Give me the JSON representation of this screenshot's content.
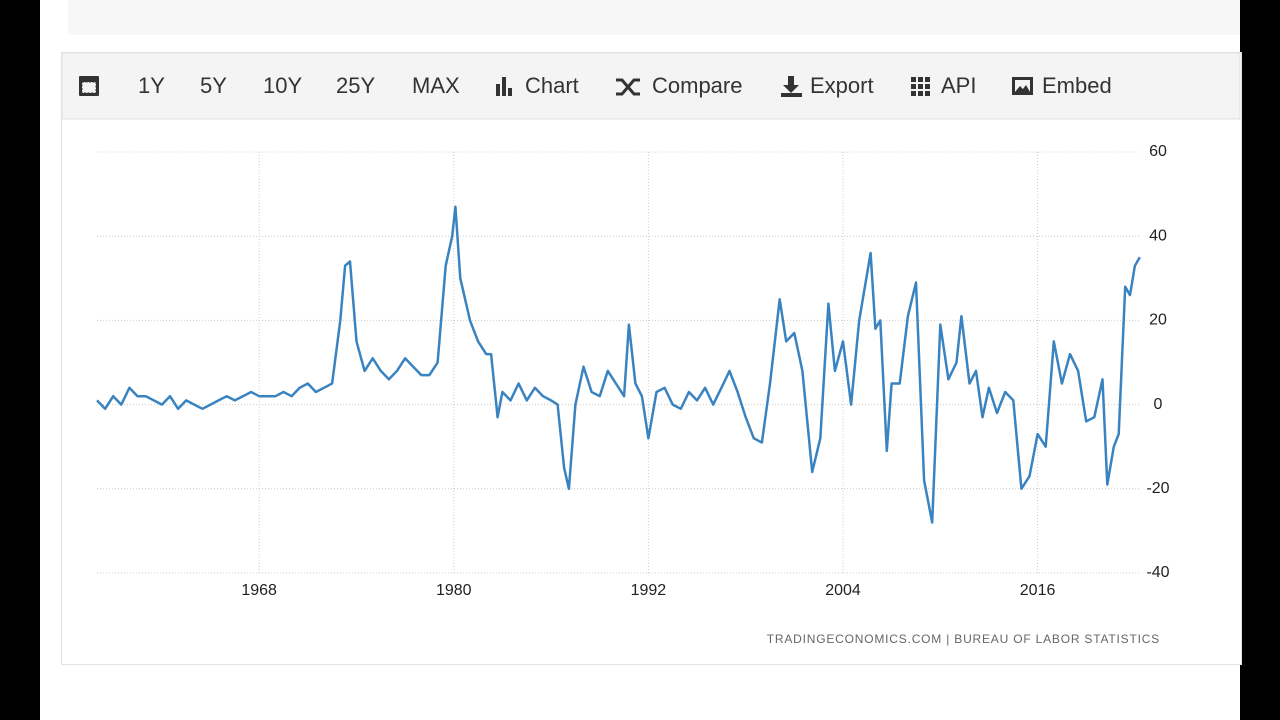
{
  "toolbar": {
    "items": [
      "1Y",
      "5Y",
      "10Y",
      "25Y",
      "MAX",
      "Chart",
      "Compare",
      "Export",
      "API",
      "Embed"
    ]
  },
  "chart_data": {
    "type": "line",
    "x": [
      1958,
      1958.5,
      1959,
      1959.5,
      1960,
      1960.5,
      1961,
      1961.5,
      1962,
      1962.5,
      1963,
      1963.5,
      1964,
      1964.5,
      1965,
      1965.5,
      1966,
      1966.5,
      1967,
      1967.5,
      1968,
      1968.5,
      1969,
      1969.5,
      1970,
      1970.5,
      1971,
      1971.5,
      1972,
      1972.5,
      1973,
      1973.3,
      1973.6,
      1974,
      1974.5,
      1975,
      1975.5,
      1976,
      1976.5,
      1977,
      1977.5,
      1978,
      1978.5,
      1979,
      1979.5,
      1979.9,
      1980.1,
      1980.4,
      1981,
      1981.5,
      1982,
      1982.3,
      1982.7,
      1983,
      1983.5,
      1984,
      1984.5,
      1985,
      1985.5,
      1986,
      1986.4,
      1986.8,
      1987.1,
      1987.5,
      1988,
      1988.5,
      1989,
      1989.5,
      1990,
      1990.5,
      1990.8,
      1991.2,
      1991.6,
      1992,
      1992.5,
      1993,
      1993.5,
      1994,
      1994.5,
      1995,
      1995.5,
      1996,
      1996.5,
      1997,
      1997.5,
      1998,
      1998.5,
      1999,
      1999.5,
      2000.1,
      2000.5,
      2001,
      2001.5,
      2002.1,
      2002.6,
      2003.1,
      2003.5,
      2004,
      2004.5,
      2005,
      2005.7,
      2006,
      2006.3,
      2006.7,
      2007,
      2007.5,
      2008,
      2008.5,
      2009,
      2009.5,
      2010,
      2010.5,
      2011,
      2011.3,
      2011.8,
      2012.2,
      2012.6,
      2013,
      2013.5,
      2014,
      2014.5,
      2015,
      2015.5,
      2016,
      2016.5,
      2017,
      2017.5,
      2018,
      2018.5,
      2019,
      2019.5,
      2020,
      2020.3,
      2020.7,
      2021,
      2021.4,
      2021.7,
      2022,
      2022.3
    ],
    "values": [
      1,
      -1,
      2,
      0,
      4,
      2,
      2,
      1,
      0,
      2,
      -1,
      1,
      0,
      -1,
      0,
      1,
      2,
      1,
      2,
      3,
      2,
      2,
      2,
      3,
      2,
      4,
      5,
      3,
      4,
      5,
      20,
      33,
      34,
      15,
      8,
      11,
      8,
      6,
      8,
      11,
      9,
      7,
      7,
      10,
      33,
      40,
      47,
      30,
      20,
      15,
      12,
      12,
      -3,
      3,
      1,
      5,
      1,
      4,
      2,
      1,
      0,
      -15,
      -20,
      0,
      9,
      3,
      2,
      8,
      5,
      2,
      19,
      5,
      2,
      -8,
      3,
      4,
      0,
      -1,
      3,
      1,
      4,
      0,
      4,
      8,
      3,
      -3,
      -8,
      -9,
      5,
      25,
      15,
      17,
      8,
      -16,
      -8,
      24,
      8,
      15,
      0,
      20,
      36,
      18,
      20,
      -11,
      5,
      5,
      21,
      29,
      -18,
      -28,
      19,
      6,
      10,
      21,
      5,
      8,
      -3,
      4,
      -2,
      3,
      1,
      -20,
      -17,
      -7,
      -10,
      15,
      5,
      12,
      8,
      -4,
      -3,
      6,
      -19,
      -10,
      -7,
      28,
      26,
      33,
      35
    ],
    "color": "#3a83c1",
    "xlim": [
      1958,
      2022.5
    ],
    "xticks": [
      1968,
      1980,
      1992,
      2004,
      2016
    ],
    "ylim": [
      -40,
      60
    ],
    "yticks": [
      -40,
      -20,
      0,
      20,
      40,
      60
    ],
    "grid": true,
    "source": "TRADINGECONOMICS.COM | BUREAU OF LABOR STATISTICS"
  }
}
